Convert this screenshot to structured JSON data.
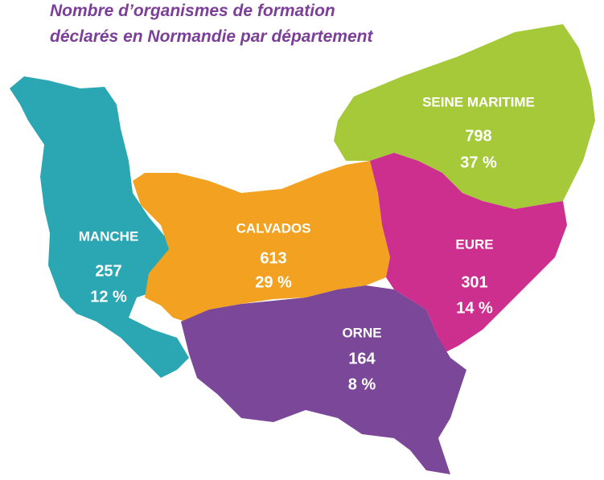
{
  "title": [
    "Nombre d’organismes de formation",
    "déclarés en Normandie par département"
  ],
  "regions": [
    {
      "name": "MANCHE",
      "count": 257,
      "share": "12 %",
      "color": "#2ba7b3"
    },
    {
      "name": "CALVADOS",
      "count": 613,
      "share": "29 %",
      "color": "#f2a220"
    },
    {
      "name": "SEINE MARITIME",
      "count": 798,
      "share": "37 %",
      "color": "#a6c93a"
    },
    {
      "name": "EURE",
      "count": 301,
      "share": "14 %",
      "color": "#cd2f8f"
    },
    {
      "name": "ORNE",
      "count": 164,
      "share": "8 %",
      "color": "#7b4799"
    }
  ]
}
